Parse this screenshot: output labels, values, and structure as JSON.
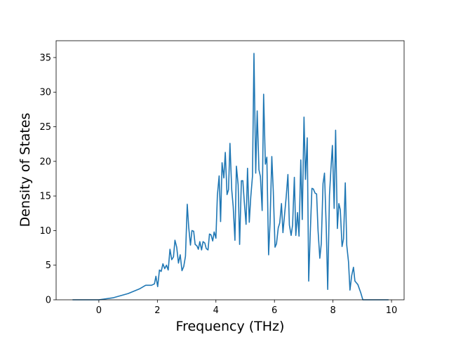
{
  "chart_data": {
    "type": "line",
    "x_label": "Frequency (THz)",
    "y_label": "Density of States",
    "x": [
      -0.9,
      0,
      0.5,
      1.0,
      1.4,
      1.6,
      1.8,
      1.9,
      1.95,
      2.01,
      2.07,
      2.13,
      2.19,
      2.25,
      2.31,
      2.37,
      2.43,
      2.49,
      2.55,
      2.6,
      2.66,
      2.72,
      2.78,
      2.84,
      2.9,
      2.96,
      3.02,
      3.07,
      3.13,
      3.18,
      3.24,
      3.29,
      3.35,
      3.4,
      3.45,
      3.51,
      3.56,
      3.62,
      3.67,
      3.73,
      3.78,
      3.83,
      3.89,
      3.94,
      4.0,
      4.05,
      4.11,
      4.16,
      4.21,
      4.27,
      4.32,
      4.38,
      4.43,
      4.48,
      4.54,
      4.59,
      4.65,
      4.7,
      4.76,
      4.81,
      4.87,
      4.92,
      4.97,
      5.03,
      5.08,
      5.14,
      5.19,
      5.25,
      5.3,
      5.36,
      5.41,
      5.47,
      5.52,
      5.58,
      5.63,
      5.69,
      5.74,
      5.8,
      5.85,
      5.91,
      5.96,
      6.02,
      6.07,
      6.13,
      6.18,
      6.24,
      6.29,
      6.35,
      6.4,
      6.46,
      6.51,
      6.57,
      6.62,
      6.68,
      6.73,
      6.79,
      6.84,
      6.9,
      6.95,
      7.01,
      7.06,
      7.12,
      7.17,
      7.22,
      7.28,
      7.33,
      7.39,
      7.44,
      7.49,
      7.55,
      7.6,
      7.66,
      7.71,
      7.77,
      7.82,
      7.88,
      7.93,
      7.98,
      8.04,
      8.09,
      8.15,
      8.2,
      8.25,
      8.31,
      8.36,
      8.42,
      8.47,
      8.53,
      8.58,
      8.64,
      8.7,
      8.75,
      8.85,
      8.95,
      9.02,
      9.9
    ],
    "series": [
      {
        "color": "#1f77b4",
        "values": [
          0,
          0,
          0.3,
          0.9,
          1.6,
          2.1,
          2.1,
          2.3,
          3.4,
          1.9,
          4.3,
          4.1,
          5.2,
          4.5,
          5.0,
          4.3,
          7.3,
          5.8,
          6.2,
          8.6,
          7.6,
          5.3,
          6.5,
          4.2,
          4.8,
          6.3,
          13.8,
          10.5,
          7.9,
          10.0,
          9.9,
          8.0,
          7.8,
          7.3,
          8.4,
          7.2,
          8.4,
          8.2,
          7.4,
          7.2,
          9.5,
          9.4,
          8.5,
          9.8,
          8.9,
          15.1,
          17.9,
          11.3,
          19.8,
          17.6,
          21.3,
          15.2,
          15.9,
          22.6,
          15.9,
          13.5,
          8.6,
          19.3,
          16.6,
          8.0,
          17.2,
          17.2,
          14.1,
          10.9,
          19.0,
          11.2,
          14.8,
          17.9,
          35.6,
          18.3,
          27.3,
          18.8,
          17.8,
          12.9,
          29.7,
          19.6,
          20.6,
          6.5,
          11.2,
          20.7,
          15.7,
          7.6,
          8.1,
          10.4,
          11.1,
          13.9,
          9.7,
          12.5,
          14.8,
          18.1,
          10.8,
          9.3,
          10.8,
          17.7,
          9.3,
          12.6,
          9.2,
          20.2,
          11.6,
          26.4,
          17.4,
          23.4,
          2.7,
          9.2,
          16.1,
          16.0,
          15.4,
          15.3,
          10.0,
          6.0,
          8.1,
          16.8,
          18.3,
          10.4,
          1.5,
          15.1,
          18.9,
          22.3,
          13.2,
          24.5,
          10.3,
          13.9,
          13.0,
          7.7,
          8.8,
          16.9,
          7.9,
          5.5,
          1.4,
          3.5,
          4.7,
          2.7,
          2.2,
          1.0,
          0,
          0
        ]
      }
    ],
    "xlim": [
      -1.46,
      10.43
    ],
    "ylim": [
      0,
      37.43
    ],
    "xticks": [
      0,
      2,
      4,
      6,
      8,
      10
    ],
    "yticks": [
      0,
      5,
      10,
      15,
      20,
      25,
      30,
      35
    ],
    "grid": false
  }
}
